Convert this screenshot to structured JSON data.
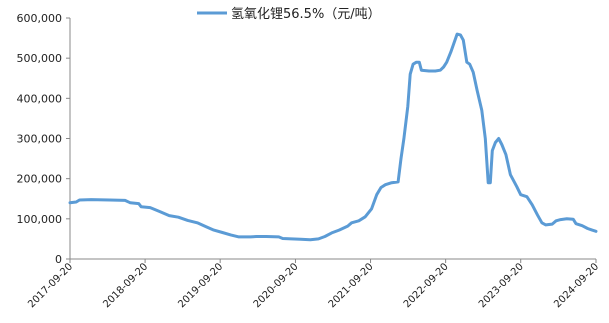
{
  "chart_data": {
    "type": "line",
    "title": "",
    "xlabel": "",
    "ylabel": "",
    "legend_position": "top-center",
    "grid": false,
    "ylim": [
      0,
      600000
    ],
    "y_ticks": [
      "0",
      "100,000",
      "200,000",
      "300,000",
      "400,000",
      "500,000",
      "600,000"
    ],
    "x_ticks": [
      "2017-09-20",
      "2018-09-20",
      "2019-09-20",
      "2020-09-20",
      "2021-09-20",
      "2022-09-20",
      "2023-09-20",
      "2024-09-20"
    ],
    "series": [
      {
        "name": "氢氧化锂56.5%（元/吨）",
        "color": "#5b9bd5",
        "points": [
          [
            "2017-09-20",
            140000
          ],
          [
            "2017-10-20",
            142000
          ],
          [
            "2017-11-05",
            147000
          ],
          [
            "2018-01-01",
            148000
          ],
          [
            "2018-04-01",
            147000
          ],
          [
            "2018-06-15",
            146000
          ],
          [
            "2018-07-10",
            140000
          ],
          [
            "2018-08-20",
            138000
          ],
          [
            "2018-09-01",
            130000
          ],
          [
            "2018-10-15",
            128000
          ],
          [
            "2018-12-01",
            118000
          ],
          [
            "2019-01-15",
            108000
          ],
          [
            "2019-03-01",
            104000
          ],
          [
            "2019-04-15",
            96000
          ],
          [
            "2019-06-01",
            90000
          ],
          [
            "2019-07-15",
            80000
          ],
          [
            "2019-08-20",
            72000
          ],
          [
            "2019-10-01",
            66000
          ],
          [
            "2019-11-10",
            60000
          ],
          [
            "2019-12-20",
            55000
          ],
          [
            "2020-02-15",
            55000
          ],
          [
            "2020-03-15",
            56000
          ],
          [
            "2020-05-01",
            56000
          ],
          [
            "2020-07-01",
            55000
          ],
          [
            "2020-07-20",
            51000
          ],
          [
            "2020-09-01",
            50000
          ],
          [
            "2020-10-15",
            49000
          ],
          [
            "2020-12-01",
            48000
          ],
          [
            "2021-01-10",
            50000
          ],
          [
            "2021-02-10",
            56000
          ],
          [
            "2021-03-15",
            65000
          ],
          [
            "2021-04-20",
            72000
          ],
          [
            "2021-06-01",
            82000
          ],
          [
            "2021-06-20",
            90000
          ],
          [
            "2021-07-25",
            95000
          ],
          [
            "2021-08-25",
            105000
          ],
          [
            "2021-09-25",
            125000
          ],
          [
            "2021-10-20",
            160000
          ],
          [
            "2021-11-10",
            178000
          ],
          [
            "2021-12-01",
            185000
          ],
          [
            "2022-01-01",
            190000
          ],
          [
            "2022-02-01",
            192000
          ],
          [
            "2022-02-15",
            250000
          ],
          [
            "2022-03-01",
            300000
          ],
          [
            "2022-03-20",
            380000
          ],
          [
            "2022-04-01",
            460000
          ],
          [
            "2022-04-15",
            485000
          ],
          [
            "2022-05-01",
            490000
          ],
          [
            "2022-05-15",
            490000
          ],
          [
            "2022-05-25",
            470000
          ],
          [
            "2022-07-01",
            468000
          ],
          [
            "2022-08-01",
            468000
          ],
          [
            "2022-08-25",
            470000
          ],
          [
            "2022-09-10",
            478000
          ],
          [
            "2022-09-25",
            490000
          ],
          [
            "2022-10-15",
            515000
          ],
          [
            "2022-11-01",
            540000
          ],
          [
            "2022-11-15",
            560000
          ],
          [
            "2022-12-01",
            558000
          ],
          [
            "2022-12-15",
            545000
          ],
          [
            "2023-01-01",
            490000
          ],
          [
            "2023-01-15",
            485000
          ],
          [
            "2023-02-01",
            465000
          ],
          [
            "2023-02-20",
            420000
          ],
          [
            "2023-03-15",
            370000
          ],
          [
            "2023-04-01",
            300000
          ],
          [
            "2023-04-15",
            190000
          ],
          [
            "2023-04-25",
            190000
          ],
          [
            "2023-05-05",
            270000
          ],
          [
            "2023-05-20",
            290000
          ],
          [
            "2023-06-05",
            300000
          ],
          [
            "2023-06-20",
            285000
          ],
          [
            "2023-07-10",
            260000
          ],
          [
            "2023-08-01",
            210000
          ],
          [
            "2023-09-01",
            180000
          ],
          [
            "2023-09-20",
            160000
          ],
          [
            "2023-10-20",
            155000
          ],
          [
            "2023-11-15",
            135000
          ],
          [
            "2023-12-10",
            110000
          ],
          [
            "2024-01-01",
            90000
          ],
          [
            "2024-01-20",
            85000
          ],
          [
            "2024-02-20",
            87000
          ],
          [
            "2024-03-10",
            95000
          ],
          [
            "2024-04-01",
            98000
          ],
          [
            "2024-05-01",
            100000
          ],
          [
            "2024-06-01",
            99000
          ],
          [
            "2024-06-15",
            88000
          ],
          [
            "2024-07-15",
            83000
          ],
          [
            "2024-08-10",
            76000
          ],
          [
            "2024-09-01",
            72000
          ],
          [
            "2024-09-20",
            69000
          ]
        ]
      }
    ]
  }
}
